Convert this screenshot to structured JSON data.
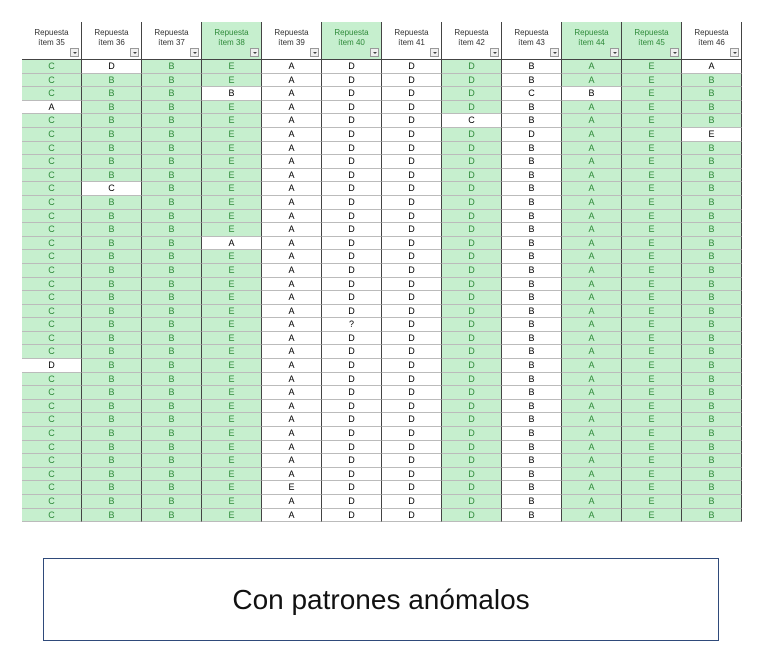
{
  "table": {
    "headers": [
      [
        "Repuesta",
        "ítem 35"
      ],
      [
        "Repuesta",
        "ítem 36"
      ],
      [
        "Repuesta",
        "ítem 37"
      ],
      [
        "Repuesta",
        "ítem 38"
      ],
      [
        "Repuesta",
        "ítem 39"
      ],
      [
        "Repuesta",
        "ítem 40"
      ],
      [
        "Repuesta",
        "ítem 41"
      ],
      [
        "Repuesta",
        "ítem 42"
      ],
      [
        "Repuesta",
        "ítem 43"
      ],
      [
        "Repuesta",
        "ítem 44"
      ],
      [
        "Repuesta",
        "ítem 45"
      ],
      [
        "Repuesta",
        "ítem 46"
      ]
    ],
    "rows": [
      [
        "C",
        "D",
        "B",
        "E",
        "A",
        "D",
        "D",
        "D",
        "B",
        "A",
        "E",
        "A"
      ],
      [
        "C",
        "B",
        "B",
        "E",
        "A",
        "D",
        "D",
        "D",
        "B",
        "A",
        "E",
        "B"
      ],
      [
        "C",
        "B",
        "B",
        "B",
        "A",
        "D",
        "D",
        "D",
        "C",
        "B",
        "E",
        "B"
      ],
      [
        "A",
        "B",
        "B",
        "E",
        "A",
        "D",
        "D",
        "D",
        "B",
        "A",
        "E",
        "B"
      ],
      [
        "C",
        "B",
        "B",
        "E",
        "A",
        "D",
        "D",
        "C",
        "B",
        "A",
        "E",
        "B"
      ],
      [
        "C",
        "B",
        "B",
        "E",
        "A",
        "D",
        "D",
        "D",
        "D",
        "A",
        "E",
        "E"
      ],
      [
        "C",
        "B",
        "B",
        "E",
        "A",
        "D",
        "D",
        "D",
        "B",
        "A",
        "E",
        "B"
      ],
      [
        "C",
        "B",
        "B",
        "E",
        "A",
        "D",
        "D",
        "D",
        "B",
        "A",
        "E",
        "B"
      ],
      [
        "C",
        "B",
        "B",
        "E",
        "A",
        "D",
        "D",
        "D",
        "B",
        "A",
        "E",
        "B"
      ],
      [
        "C",
        "C",
        "B",
        "E",
        "A",
        "D",
        "D",
        "D",
        "B",
        "A",
        "E",
        "B"
      ],
      [
        "C",
        "B",
        "B",
        "E",
        "A",
        "D",
        "D",
        "D",
        "B",
        "A",
        "E",
        "B"
      ],
      [
        "C",
        "B",
        "B",
        "E",
        "A",
        "D",
        "D",
        "D",
        "B",
        "A",
        "E",
        "B"
      ],
      [
        "C",
        "B",
        "B",
        "E",
        "A",
        "D",
        "D",
        "D",
        "B",
        "A",
        "E",
        "B"
      ],
      [
        "C",
        "B",
        "B",
        "A",
        "A",
        "D",
        "D",
        "D",
        "B",
        "A",
        "E",
        "B"
      ],
      [
        "C",
        "B",
        "B",
        "E",
        "A",
        "D",
        "D",
        "D",
        "B",
        "A",
        "E",
        "B"
      ],
      [
        "C",
        "B",
        "B",
        "E",
        "A",
        "D",
        "D",
        "D",
        "B",
        "A",
        "E",
        "B"
      ],
      [
        "C",
        "B",
        "B",
        "E",
        "A",
        "D",
        "D",
        "D",
        "B",
        "A",
        "E",
        "B"
      ],
      [
        "C",
        "B",
        "B",
        "E",
        "A",
        "D",
        "D",
        "D",
        "B",
        "A",
        "E",
        "B"
      ],
      [
        "C",
        "B",
        "B",
        "E",
        "A",
        "D",
        "D",
        "D",
        "B",
        "A",
        "E",
        "B"
      ],
      [
        "C",
        "B",
        "B",
        "E",
        "A",
        "?",
        "D",
        "D",
        "B",
        "A",
        "E",
        "B"
      ],
      [
        "C",
        "B",
        "B",
        "E",
        "A",
        "D",
        "D",
        "D",
        "B",
        "A",
        "E",
        "B"
      ],
      [
        "C",
        "B",
        "B",
        "E",
        "A",
        "D",
        "D",
        "D",
        "B",
        "A",
        "E",
        "B"
      ],
      [
        "D",
        "B",
        "B",
        "E",
        "A",
        "D",
        "D",
        "D",
        "B",
        "A",
        "E",
        "B"
      ],
      [
        "C",
        "B",
        "B",
        "E",
        "A",
        "D",
        "D",
        "D",
        "B",
        "A",
        "E",
        "B"
      ],
      [
        "C",
        "B",
        "B",
        "E",
        "A",
        "D",
        "D",
        "D",
        "B",
        "A",
        "E",
        "B"
      ],
      [
        "C",
        "B",
        "B",
        "E",
        "A",
        "D",
        "D",
        "D",
        "B",
        "A",
        "E",
        "B"
      ],
      [
        "C",
        "B",
        "B",
        "E",
        "A",
        "D",
        "D",
        "D",
        "B",
        "A",
        "E",
        "B"
      ],
      [
        "C",
        "B",
        "B",
        "E",
        "A",
        "D",
        "D",
        "D",
        "B",
        "A",
        "E",
        "B"
      ],
      [
        "C",
        "B",
        "B",
        "E",
        "A",
        "D",
        "D",
        "D",
        "B",
        "A",
        "E",
        "B"
      ],
      [
        "C",
        "B",
        "B",
        "E",
        "A",
        "D",
        "D",
        "D",
        "B",
        "A",
        "E",
        "B"
      ],
      [
        "C",
        "B",
        "B",
        "E",
        "A",
        "D",
        "D",
        "D",
        "B",
        "A",
        "E",
        "B"
      ],
      [
        "C",
        "B",
        "B",
        "E",
        "E",
        "D",
        "D",
        "D",
        "B",
        "A",
        "E",
        "B"
      ],
      [
        "C",
        "B",
        "B",
        "E",
        "A",
        "D",
        "D",
        "D",
        "B",
        "A",
        "E",
        "B"
      ],
      [
        "C",
        "B",
        "B",
        "E",
        "A",
        "D",
        "D",
        "D",
        "B",
        "A",
        "E",
        "B"
      ]
    ]
  },
  "caption": "Con patrones anómalos"
}
